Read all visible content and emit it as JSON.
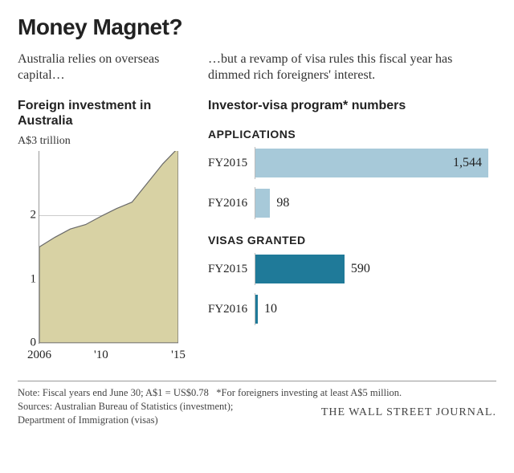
{
  "title": "Money Magnet?",
  "left": {
    "intro": "Australia relies on overseas capital…",
    "subhead": "Foreign investment in Australia",
    "unit_label": "A$3 trillion",
    "chart": {
      "type": "area",
      "fill_color": "#d8d2a4",
      "line_color": "#6a6a6a",
      "grid_color": "#cccccc",
      "xlim": [
        2006,
        2015
      ],
      "ylim": [
        0,
        3
      ],
      "yticks": [
        0,
        1,
        2
      ],
      "xticks": [
        {
          "pos": 2006,
          "label": "2006"
        },
        {
          "pos": 2010,
          "label": "'10"
        },
        {
          "pos": 2015,
          "label": "'15"
        }
      ],
      "series": [
        {
          "x": 2006,
          "y": 1.5
        },
        {
          "x": 2007,
          "y": 1.65
        },
        {
          "x": 2008,
          "y": 1.78
        },
        {
          "x": 2009,
          "y": 1.85
        },
        {
          "x": 2010,
          "y": 1.98
        },
        {
          "x": 2011,
          "y": 2.1
        },
        {
          "x": 2012,
          "y": 2.2
        },
        {
          "x": 2013,
          "y": 2.5
        },
        {
          "x": 2014,
          "y": 2.8
        },
        {
          "x": 2015,
          "y": 3.05
        }
      ]
    }
  },
  "right": {
    "intro": "…but a revamp of visa rules this fiscal year has dimmed rich foreigners' interest.",
    "subhead": "Investor-visa program* numbers",
    "groups": [
      {
        "title": "APPLICATIONS",
        "color": "#a7c9d9",
        "max": 1544,
        "bars": [
          {
            "label": "FY2015",
            "value": 1544,
            "display": "1,544",
            "value_inside": true
          },
          {
            "label": "FY2016",
            "value": 98,
            "display": "98",
            "value_inside": false
          }
        ]
      },
      {
        "title": "VISAS GRANTED",
        "color": "#1f7a99",
        "max": 1544,
        "bars": [
          {
            "label": "FY2015",
            "value": 590,
            "display": "590",
            "value_inside": false
          },
          {
            "label": "FY2016",
            "value": 10,
            "display": "10",
            "value_inside": false
          }
        ]
      }
    ]
  },
  "footer": {
    "note": "Note: Fiscal years end June 30; A$1 = US$0.78   *For foreigners investing at least A$5 million.",
    "sources": "Sources: Australian Bureau of Statistics (investment);",
    "sources2": "Department of Immigration (visas)",
    "brand": "THE WALL STREET JOURNAL."
  },
  "style": {
    "text_color": "#222222",
    "background": "#ffffff"
  }
}
